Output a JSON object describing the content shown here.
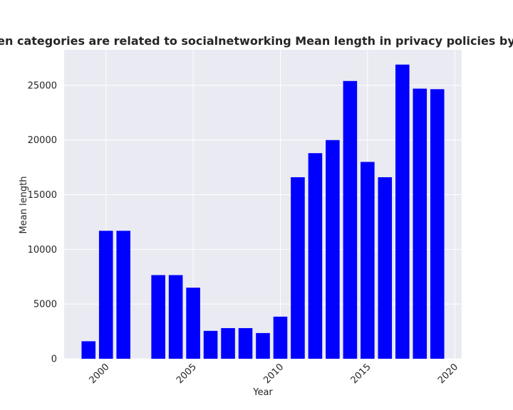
{
  "chart_data": {
    "type": "bar",
    "title": "when categories are related to socialnetworking Mean length in privacy policies by Year",
    "xlabel": "Year",
    "ylabel": "Mean length",
    "x": [
      1999,
      2000,
      2001,
      2003,
      2004,
      2005,
      2006,
      2007,
      2008,
      2009,
      2010,
      2011,
      2012,
      2013,
      2014,
      2015,
      2016,
      2017,
      2018,
      2019
    ],
    "values": [
      1600,
      11700,
      11700,
      7650,
      7650,
      6500,
      2550,
      2800,
      2800,
      2350,
      3850,
      16600,
      18800,
      20000,
      25400,
      18000,
      16600,
      26900,
      24700,
      24650
    ],
    "xlim": [
      1997.6,
      2020.4
    ],
    "ylim": [
      0,
      28250
    ],
    "xticks": [
      2000,
      2005,
      2010,
      2015,
      2020
    ],
    "xtick_labels": [
      "2000",
      "2005",
      "2010",
      "2015",
      "2020"
    ],
    "yticks": [
      0,
      5000,
      10000,
      15000,
      20000,
      25000
    ],
    "ytick_labels": [
      "0",
      "5000",
      "10000",
      "15000",
      "20000",
      "25000"
    ],
    "bar_color": "#0000ff",
    "plot_background": "#eaeaf2",
    "grid_color": "#ffffff",
    "grid": true,
    "legend": false
  }
}
